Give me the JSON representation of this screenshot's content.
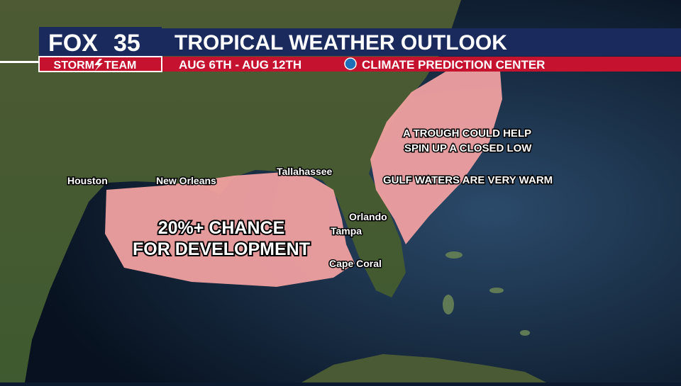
{
  "header": {
    "logo": {
      "brand": "FOX",
      "channel": "35",
      "team_left": "STORM",
      "team_right": "TEAM"
    },
    "title": "TROPICAL WEATHER OUTLOOK",
    "date_range": "AUG 6TH - AUG 12TH",
    "source": "CLIMATE PREDICTION CENTER"
  },
  "map": {
    "cities": [
      "Houston",
      "New Orleans",
      "Tallahassee",
      "Orlando",
      "Tampa",
      "Cape Coral"
    ],
    "annotations": {
      "gulf_area": [
        "20%+ CHANCE",
        "FOR DEVELOPMENT"
      ],
      "atlantic": [
        "A TROUGH COULD HELP",
        "SPIN UP A CLOSED LOW",
        "GULF WATERS ARE VERY WARM"
      ]
    }
  }
}
